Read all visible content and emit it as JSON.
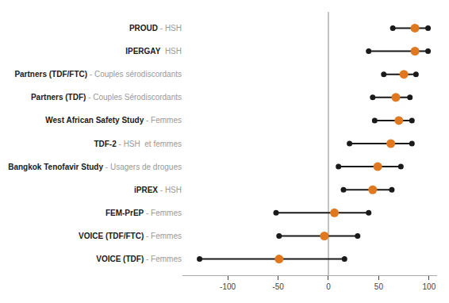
{
  "chart_data": {
    "type": "range",
    "categories": [
      "PROUD",
      "IPERGAY",
      "Partners (TDF/FTC)",
      "Partners (TDF)",
      "West African Safety Study",
      "TDF-2",
      "Bangkok Tenofavir Study",
      "iPREX",
      "FEM-PrEP",
      "VOICE (TDF/FTC)",
      "VOICE (TDF)"
    ],
    "subtitles": [
      " - HSH",
      "  HSH",
      " - Couples sérodiscordants",
      " - Couples Sérodiscordants",
      " - Femmes",
      " - HSH  et femmes",
      " - Usagers de drogues",
      " - HSH",
      " - Femmes",
      " - Femmes",
      " - Femmes"
    ],
    "center": [
      86,
      86,
      75,
      67,
      70,
      62,
      49,
      44,
      6,
      -4,
      -49
    ],
    "low": [
      64,
      40,
      55,
      44,
      46,
      21,
      10,
      15,
      -52,
      -49,
      -128
    ],
    "high": [
      99,
      99,
      87,
      81,
      83,
      83,
      72,
      63,
      40,
      29,
      16
    ],
    "center_color": "#E07820",
    "endpoint_color": "#1a1a1a",
    "line_color": "#1a1a1a",
    "reference_lines": [
      0
    ],
    "reference_line_color": "#888888",
    "label_color": "#1a1a1a",
    "subtitle_color": "#999999",
    "xlim": [
      -145,
      108
    ],
    "xticks": [
      -100,
      -50,
      0,
      50,
      100
    ],
    "grid": false
  }
}
